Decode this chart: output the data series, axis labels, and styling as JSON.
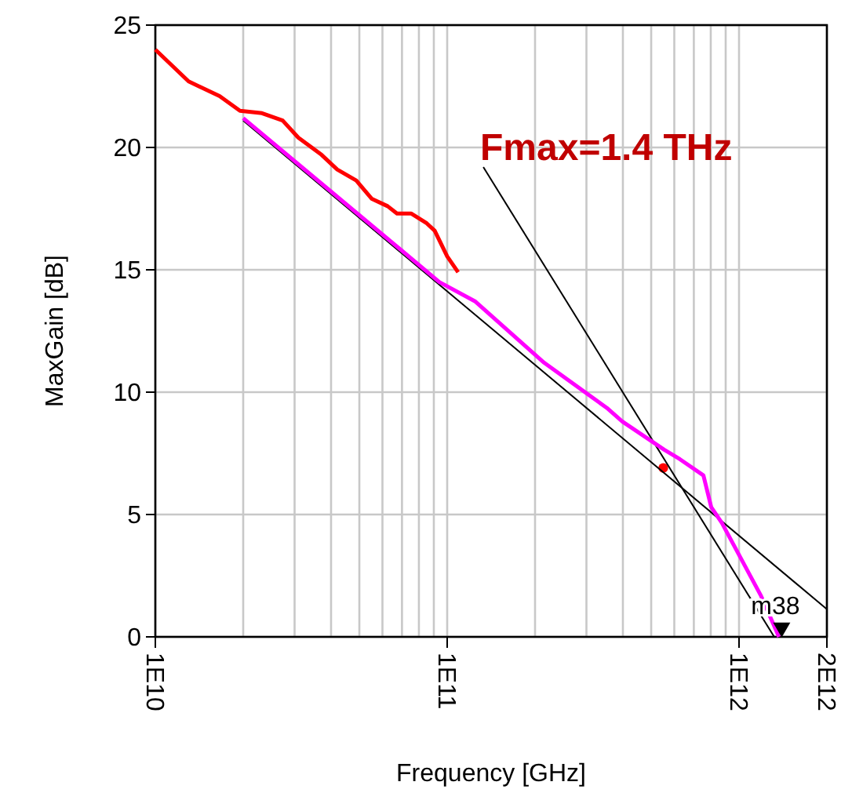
{
  "chart_data": {
    "type": "line",
    "xlabel": "Frequency [GHz]",
    "ylabel": "MaxGain [dB]",
    "log": "x",
    "grid": true,
    "xlim": [
      10000000000.0,
      2000000000000.0
    ],
    "ylim": [
      0,
      25
    ],
    "xticks": [
      {
        "value": 10000000000.0,
        "label": "1E10"
      },
      {
        "value": 20000000000.0,
        "label": null
      },
      {
        "value": 30000000000.0,
        "label": null
      },
      {
        "value": 40000000000.0,
        "label": null
      },
      {
        "value": 50000000000.0,
        "label": null
      },
      {
        "value": 60000000000.0,
        "label": null
      },
      {
        "value": 70000000000.0,
        "label": null
      },
      {
        "value": 80000000000.0,
        "label": null
      },
      {
        "value": 90000000000.0,
        "label": null
      },
      {
        "value": 100000000000.0,
        "label": "1E11"
      },
      {
        "value": 200000000000.0,
        "label": null
      },
      {
        "value": 300000000000.0,
        "label": null
      },
      {
        "value": 400000000000.0,
        "label": null
      },
      {
        "value": 500000000000.0,
        "label": null
      },
      {
        "value": 600000000000.0,
        "label": null
      },
      {
        "value": 700000000000.0,
        "label": null
      },
      {
        "value": 800000000000.0,
        "label": null
      },
      {
        "value": 900000000000.0,
        "label": null
      },
      {
        "value": 1000000000000.0,
        "label": "1E12"
      },
      {
        "value": 2000000000000.0,
        "label": "2E12"
      }
    ],
    "yticks": [
      0,
      5,
      10,
      15,
      20,
      25
    ],
    "series": [
      {
        "color": "#ff0000",
        "x": [
          10000000000.0,
          13000000000.0,
          16600000000.0,
          19500000000.0,
          23200000000.0,
          27300000000.0,
          30900000000.0,
          37100000000.0,
          42000000000.0,
          48800000000.0,
          55200000000.0,
          62500000000.0,
          67300000000.0,
          75200000000.0,
          85100000000.0,
          90600000000.0,
          100000000000.0,
          109000000000.0
        ],
        "values": [
          24.0,
          22.7,
          22.1,
          21.5,
          21.4,
          21.1,
          20.4,
          19.7,
          19.1,
          18.65,
          17.9,
          17.6,
          17.3,
          17.3,
          16.9,
          16.6,
          15.55,
          14.9
        ]
      },
      {
        "type": "scatter",
        "marker": "circle",
        "color": "#ff0000",
        "x": [
          550000000000.0
        ],
        "values": [
          6.9
        ]
      },
      {
        "color": "#000000",
        "x": [
          20000000000.0,
          2000000000000.0
        ],
        "values": [
          21.1,
          1.13
        ]
      },
      {
        "color": "#000000",
        "x": [
          133000000000.0,
          1320000000000.0
        ],
        "values": [
          19.2,
          0
        ]
      },
      {
        "color": "#ff00ff",
        "x": [
          20000000000.0,
          94000000000.0,
          125000000000.0,
          215000000000.0,
          352000000000.0,
          398000000000.0,
          554000000000.0,
          627000000000.0,
          755000000000.0,
          803000000000.0,
          873000000000.0,
          1190000000000.0,
          1370000000000.0
        ],
        "values": [
          21.2,
          14.5,
          13.7,
          11.2,
          9.36,
          8.8,
          7.65,
          7.26,
          6.6,
          5.3,
          4.66,
          1.67,
          0
        ]
      },
      {
        "type": "scatter",
        "name": "m38",
        "marker": "triangle",
        "color": "#000000",
        "x": [
          1400000000000.0
        ],
        "values": [
          0.3
        ]
      }
    ],
    "annotations": [
      "Fmax=1.4 THz"
    ]
  }
}
